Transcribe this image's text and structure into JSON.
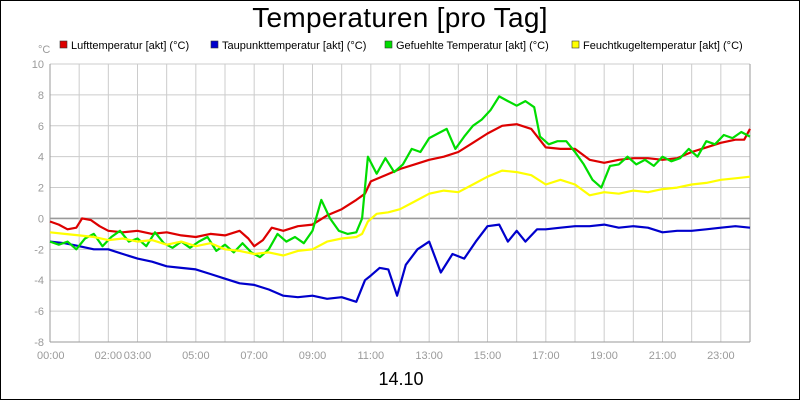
{
  "chart_data": {
    "type": "line",
    "title": "Temperaturen [pro Tag]",
    "y_unit": "°C",
    "xlabel": "14.10",
    "ylim": [
      -8,
      10
    ],
    "y_ticks": [
      -8,
      -6,
      -4,
      -2,
      0,
      2,
      4,
      6,
      8,
      10
    ],
    "x_range_hours": [
      0,
      24
    ],
    "x_ticks": [
      {
        "h": 0,
        "label": "00:00"
      },
      {
        "h": 2,
        "label": "02:00"
      },
      {
        "h": 3,
        "label": "03:00"
      },
      {
        "h": 5,
        "label": "05:00"
      },
      {
        "h": 7,
        "label": "07:00"
      },
      {
        "h": 9,
        "label": "09:00"
      },
      {
        "h": 11,
        "label": "11:00"
      },
      {
        "h": 13,
        "label": "13:00"
      },
      {
        "h": 15,
        "label": "15:00"
      },
      {
        "h": 17,
        "label": "17:00"
      },
      {
        "h": 19,
        "label": "19:00"
      },
      {
        "h": 21,
        "label": "21:00"
      },
      {
        "h": 23,
        "label": "23:00"
      }
    ],
    "grid": true,
    "legend_position": "top",
    "series": [
      {
        "name": "Lufttemperatur [akt] (°C)",
        "color": "#dd0000",
        "points": [
          [
            0.0,
            -0.2
          ],
          [
            0.3,
            -0.4
          ],
          [
            0.6,
            -0.7
          ],
          [
            0.9,
            -0.6
          ],
          [
            1.1,
            0.0
          ],
          [
            1.4,
            -0.1
          ],
          [
            1.7,
            -0.5
          ],
          [
            2.0,
            -0.8
          ],
          [
            2.5,
            -0.9
          ],
          [
            3.0,
            -0.8
          ],
          [
            3.5,
            -1.0
          ],
          [
            4.0,
            -0.9
          ],
          [
            4.5,
            -1.1
          ],
          [
            5.0,
            -1.2
          ],
          [
            5.5,
            -1.0
          ],
          [
            6.0,
            -1.1
          ],
          [
            6.5,
            -0.8
          ],
          [
            6.8,
            -1.3
          ],
          [
            7.0,
            -1.8
          ],
          [
            7.3,
            -1.4
          ],
          [
            7.6,
            -0.6
          ],
          [
            8.0,
            -0.8
          ],
          [
            8.5,
            -0.5
          ],
          [
            9.0,
            -0.4
          ],
          [
            9.5,
            0.2
          ],
          [
            10.0,
            0.6
          ],
          [
            10.5,
            1.2
          ],
          [
            10.8,
            1.6
          ],
          [
            11.0,
            2.4
          ],
          [
            11.5,
            2.8
          ],
          [
            12.0,
            3.2
          ],
          [
            12.5,
            3.5
          ],
          [
            13.0,
            3.8
          ],
          [
            13.5,
            4.0
          ],
          [
            14.0,
            4.3
          ],
          [
            14.5,
            4.9
          ],
          [
            15.0,
            5.5
          ],
          [
            15.5,
            6.0
          ],
          [
            16.0,
            6.1
          ],
          [
            16.5,
            5.8
          ],
          [
            17.0,
            4.6
          ],
          [
            17.5,
            4.5
          ],
          [
            18.0,
            4.5
          ],
          [
            18.5,
            3.8
          ],
          [
            19.0,
            3.6
          ],
          [
            19.5,
            3.8
          ],
          [
            20.0,
            3.9
          ],
          [
            20.5,
            3.9
          ],
          [
            21.0,
            3.8
          ],
          [
            21.5,
            3.9
          ],
          [
            22.0,
            4.3
          ],
          [
            22.5,
            4.6
          ],
          [
            23.0,
            4.9
          ],
          [
            23.5,
            5.1
          ],
          [
            23.8,
            5.1
          ],
          [
            24.0,
            5.8
          ]
        ]
      },
      {
        "name": "Taupunkttemperatur [akt] (°C)",
        "color": "#0000cc",
        "points": [
          [
            0.0,
            -1.5
          ],
          [
            0.5,
            -1.6
          ],
          [
            1.0,
            -1.8
          ],
          [
            1.5,
            -2.0
          ],
          [
            2.0,
            -2.0
          ],
          [
            2.5,
            -2.3
          ],
          [
            3.0,
            -2.6
          ],
          [
            3.5,
            -2.8
          ],
          [
            4.0,
            -3.1
          ],
          [
            4.5,
            -3.2
          ],
          [
            5.0,
            -3.3
          ],
          [
            5.5,
            -3.6
          ],
          [
            6.0,
            -3.9
          ],
          [
            6.5,
            -4.2
          ],
          [
            7.0,
            -4.3
          ],
          [
            7.5,
            -4.6
          ],
          [
            8.0,
            -5.0
          ],
          [
            8.5,
            -5.1
          ],
          [
            9.0,
            -5.0
          ],
          [
            9.5,
            -5.2
          ],
          [
            10.0,
            -5.1
          ],
          [
            10.5,
            -5.4
          ],
          [
            10.8,
            -4.0
          ],
          [
            11.0,
            -3.7
          ],
          [
            11.3,
            -3.2
          ],
          [
            11.6,
            -3.3
          ],
          [
            11.9,
            -5.0
          ],
          [
            12.2,
            -3.0
          ],
          [
            12.6,
            -2.0
          ],
          [
            13.0,
            -1.5
          ],
          [
            13.4,
            -3.5
          ],
          [
            13.8,
            -2.3
          ],
          [
            14.2,
            -2.6
          ],
          [
            14.6,
            -1.5
          ],
          [
            15.0,
            -0.5
          ],
          [
            15.4,
            -0.4
          ],
          [
            15.7,
            -1.5
          ],
          [
            16.0,
            -0.8
          ],
          [
            16.3,
            -1.5
          ],
          [
            16.7,
            -0.7
          ],
          [
            17.0,
            -0.7
          ],
          [
            17.5,
            -0.6
          ],
          [
            18.0,
            -0.5
          ],
          [
            18.5,
            -0.5
          ],
          [
            19.0,
            -0.4
          ],
          [
            19.5,
            -0.6
          ],
          [
            20.0,
            -0.5
          ],
          [
            20.5,
            -0.6
          ],
          [
            21.0,
            -0.9
          ],
          [
            21.5,
            -0.8
          ],
          [
            22.0,
            -0.8
          ],
          [
            22.5,
            -0.7
          ],
          [
            23.0,
            -0.6
          ],
          [
            23.5,
            -0.5
          ],
          [
            24.0,
            -0.6
          ]
        ]
      },
      {
        "name": "Gefuehlte Temperatur [akt] (°C)",
        "color": "#00dd00",
        "points": [
          [
            0.0,
            -1.5
          ],
          [
            0.3,
            -1.7
          ],
          [
            0.6,
            -1.5
          ],
          [
            0.9,
            -2.0
          ],
          [
            1.2,
            -1.3
          ],
          [
            1.5,
            -1.0
          ],
          [
            1.8,
            -1.8
          ],
          [
            2.1,
            -1.2
          ],
          [
            2.4,
            -0.8
          ],
          [
            2.7,
            -1.5
          ],
          [
            3.0,
            -1.3
          ],
          [
            3.3,
            -1.8
          ],
          [
            3.6,
            -0.9
          ],
          [
            3.9,
            -1.6
          ],
          [
            4.2,
            -1.9
          ],
          [
            4.5,
            -1.5
          ],
          [
            4.8,
            -1.9
          ],
          [
            5.1,
            -1.5
          ],
          [
            5.4,
            -1.2
          ],
          [
            5.7,
            -2.1
          ],
          [
            6.0,
            -1.7
          ],
          [
            6.3,
            -2.2
          ],
          [
            6.6,
            -1.6
          ],
          [
            6.9,
            -2.2
          ],
          [
            7.2,
            -2.5
          ],
          [
            7.5,
            -2.0
          ],
          [
            7.8,
            -1.0
          ],
          [
            8.1,
            -1.5
          ],
          [
            8.4,
            -1.2
          ],
          [
            8.7,
            -1.6
          ],
          [
            9.0,
            -0.8
          ],
          [
            9.3,
            1.2
          ],
          [
            9.6,
            0.0
          ],
          [
            9.9,
            -0.8
          ],
          [
            10.2,
            -1.0
          ],
          [
            10.5,
            -0.9
          ],
          [
            10.7,
            0.0
          ],
          [
            10.9,
            4.0
          ],
          [
            11.2,
            2.9
          ],
          [
            11.5,
            3.9
          ],
          [
            11.8,
            3.0
          ],
          [
            12.1,
            3.5
          ],
          [
            12.4,
            4.5
          ],
          [
            12.7,
            4.3
          ],
          [
            13.0,
            5.2
          ],
          [
            13.3,
            5.5
          ],
          [
            13.6,
            5.8
          ],
          [
            13.9,
            4.5
          ],
          [
            14.2,
            5.3
          ],
          [
            14.5,
            6.0
          ],
          [
            14.8,
            6.4
          ],
          [
            15.1,
            7.0
          ],
          [
            15.4,
            7.9
          ],
          [
            15.7,
            7.6
          ],
          [
            16.0,
            7.3
          ],
          [
            16.3,
            7.6
          ],
          [
            16.6,
            7.2
          ],
          [
            16.8,
            5.3
          ],
          [
            17.1,
            4.8
          ],
          [
            17.4,
            5.0
          ],
          [
            17.7,
            5.0
          ],
          [
            18.0,
            4.3
          ],
          [
            18.3,
            3.5
          ],
          [
            18.6,
            2.5
          ],
          [
            18.9,
            2.0
          ],
          [
            19.2,
            3.4
          ],
          [
            19.5,
            3.5
          ],
          [
            19.8,
            4.0
          ],
          [
            20.1,
            3.5
          ],
          [
            20.4,
            3.8
          ],
          [
            20.7,
            3.4
          ],
          [
            21.0,
            4.0
          ],
          [
            21.3,
            3.7
          ],
          [
            21.6,
            3.9
          ],
          [
            21.9,
            4.5
          ],
          [
            22.2,
            4.0
          ],
          [
            22.5,
            5.0
          ],
          [
            22.8,
            4.8
          ],
          [
            23.1,
            5.4
          ],
          [
            23.4,
            5.2
          ],
          [
            23.7,
            5.6
          ],
          [
            24.0,
            5.3
          ]
        ]
      },
      {
        "name": "Feuchtkugeltemperatur [akt] (°C)",
        "color": "#ffff00",
        "points": [
          [
            0.0,
            -0.9
          ],
          [
            0.5,
            -1.0
          ],
          [
            1.0,
            -1.1
          ],
          [
            1.5,
            -1.2
          ],
          [
            2.0,
            -1.4
          ],
          [
            2.5,
            -1.3
          ],
          [
            3.0,
            -1.5
          ],
          [
            3.5,
            -1.4
          ],
          [
            4.0,
            -1.7
          ],
          [
            4.5,
            -1.5
          ],
          [
            5.0,
            -1.8
          ],
          [
            5.5,
            -1.6
          ],
          [
            6.0,
            -2.0
          ],
          [
            6.5,
            -2.1
          ],
          [
            7.0,
            -2.3
          ],
          [
            7.5,
            -2.2
          ],
          [
            8.0,
            -2.4
          ],
          [
            8.5,
            -2.1
          ],
          [
            9.0,
            -2.0
          ],
          [
            9.5,
            -1.5
          ],
          [
            10.0,
            -1.3
          ],
          [
            10.5,
            -1.2
          ],
          [
            10.7,
            -1.0
          ],
          [
            10.9,
            -0.2
          ],
          [
            11.2,
            0.3
          ],
          [
            11.6,
            0.4
          ],
          [
            12.0,
            0.6
          ],
          [
            12.5,
            1.1
          ],
          [
            13.0,
            1.6
          ],
          [
            13.5,
            1.8
          ],
          [
            14.0,
            1.7
          ],
          [
            14.5,
            2.2
          ],
          [
            15.0,
            2.7
          ],
          [
            15.5,
            3.1
          ],
          [
            16.0,
            3.0
          ],
          [
            16.5,
            2.8
          ],
          [
            17.0,
            2.2
          ],
          [
            17.5,
            2.5
          ],
          [
            18.0,
            2.2
          ],
          [
            18.5,
            1.5
          ],
          [
            19.0,
            1.7
          ],
          [
            19.5,
            1.6
          ],
          [
            20.0,
            1.8
          ],
          [
            20.5,
            1.7
          ],
          [
            21.0,
            1.9
          ],
          [
            21.5,
            2.0
          ],
          [
            22.0,
            2.2
          ],
          [
            22.5,
            2.3
          ],
          [
            23.0,
            2.5
          ],
          [
            23.5,
            2.6
          ],
          [
            24.0,
            2.7
          ]
        ]
      }
    ]
  }
}
